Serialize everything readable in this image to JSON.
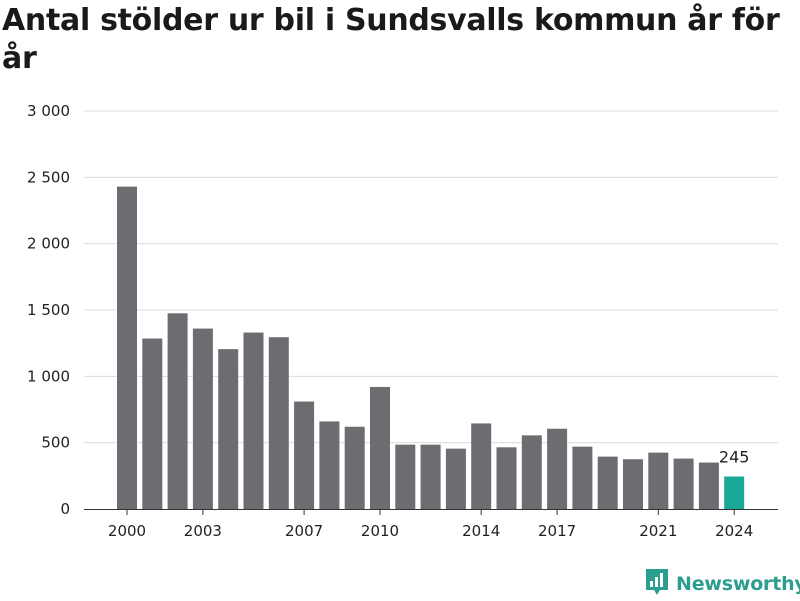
{
  "title": "Antal stölder ur bil i Sundsvalls kommun år för år",
  "brand": {
    "name": "Newsworthy",
    "icon": "bar-chart-speech-bubble-icon",
    "color": "#2b9e8f"
  },
  "chart_data": {
    "type": "bar",
    "title": "Antal stölder ur bil i Sundsvalls kommun år för år",
    "xlabel": "",
    "ylabel": "",
    "categories": [
      "2000",
      "2001",
      "2002",
      "2003",
      "2004",
      "2005",
      "2006",
      "2007",
      "2008",
      "2009",
      "2010",
      "2011",
      "2012",
      "2013",
      "2014",
      "2015",
      "2016",
      "2017",
      "2018",
      "2019",
      "2020",
      "2021",
      "2022",
      "2023",
      "2024"
    ],
    "values": [
      2430,
      1285,
      1475,
      1360,
      1205,
      1330,
      1295,
      810,
      660,
      620,
      920,
      485,
      485,
      455,
      645,
      465,
      555,
      605,
      470,
      395,
      375,
      425,
      380,
      350,
      245
    ],
    "x_tick_labels": [
      "2000",
      "2003",
      "2007",
      "2010",
      "2014",
      "2017",
      "2021",
      "2024"
    ],
    "y_ticks": [
      0,
      500,
      1000,
      1500,
      2000,
      2500,
      3000
    ],
    "y_tick_labels": [
      "0",
      "500",
      "1 000",
      "1 500",
      "2 000",
      "2 500",
      "3 000"
    ],
    "ylim": [
      0,
      3000
    ],
    "grid": true,
    "bar_color": "#6d6c71",
    "highlight_color": "#1aa899",
    "highlight_index": 24,
    "data_labels": [
      {
        "category": "2024",
        "text": "245"
      }
    ]
  }
}
